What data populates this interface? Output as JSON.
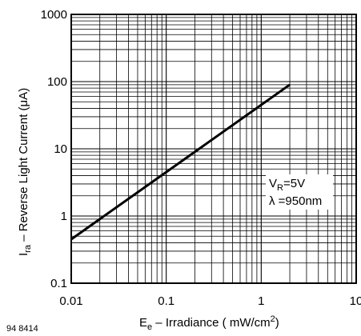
{
  "figure_id": "94 8414",
  "chart_data": {
    "type": "line",
    "xscale": "log",
    "yscale": "log",
    "xlim": [
      0.01,
      10
    ],
    "ylim": [
      0.1,
      1000
    ],
    "grid": true,
    "x_ticks": [
      "0.01",
      "0.1",
      "1",
      "10"
    ],
    "y_ticks": [
      "0.1",
      "1",
      "10",
      "100",
      "1000"
    ],
    "xlabel": {
      "symbol": "E",
      "subscript": "e",
      "text": " – Irradiance ( mW/cm",
      "superscript": "2",
      "tail": ")"
    },
    "ylabel": {
      "symbol": "I",
      "subscript": "ra",
      "text": " – Reverse Light Current (",
      "mu": "μ",
      "tail": "A)"
    },
    "annotation": {
      "line1": {
        "symbol": "V",
        "subscript": "R",
        "text": "=5V"
      },
      "line2": {
        "symbol": "λ",
        "text": " =950nm"
      }
    },
    "series": [
      {
        "x": [
          0.01,
          2
        ],
        "y": [
          0.45,
          90
        ]
      }
    ]
  }
}
